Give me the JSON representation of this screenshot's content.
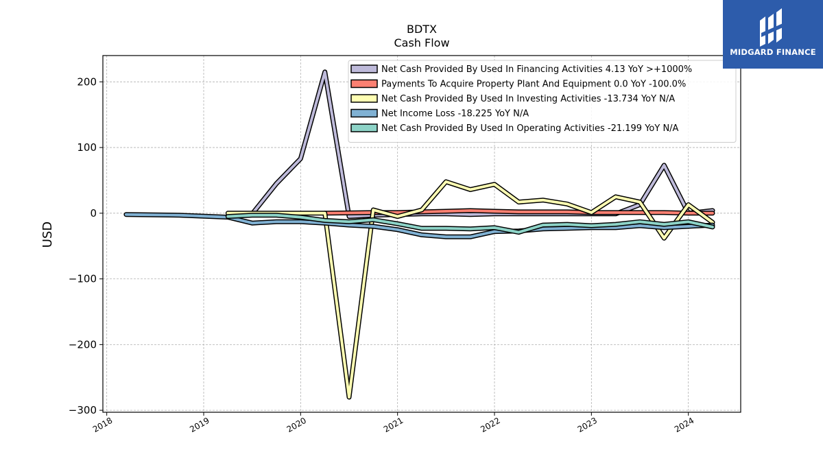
{
  "branding": {
    "logo_text": "MIDGARD FINANCE",
    "logo_color": "#2d5cab"
  },
  "chart_data": {
    "type": "line",
    "title": "BDTX",
    "subtitle": "Cash Flow",
    "xlabel": "",
    "ylabel": "USD",
    "xlim": [
      2017.96,
      2024.54
    ],
    "ylim": [
      -303,
      240
    ],
    "x_ticks": [
      2018,
      2019,
      2020,
      2021,
      2022,
      2023,
      2024
    ],
    "x_tick_labels": [
      "2018",
      "2019",
      "2020",
      "2021",
      "2022",
      "2023",
      "2024"
    ],
    "y_ticks": [
      200,
      100,
      0,
      -100,
      -200,
      -300
    ],
    "y_tick_labels": [
      "200",
      "100",
      "0",
      "−100",
      "−200",
      "−300"
    ],
    "grid": true,
    "legend_position": "top-right",
    "series": [
      {
        "name": "Net Cash Provided By Used In Financing Activities",
        "legend_label": "Net Cash Provided By Used In Financing Activities  4.13 YoY >+1000%",
        "color": "#bebada",
        "points": [
          [
            2019.5,
            -1
          ],
          [
            2019.75,
            45
          ],
          [
            2020.0,
            83
          ],
          [
            2020.25,
            215
          ],
          [
            2020.5,
            -5
          ],
          [
            2020.75,
            -3
          ],
          [
            2021.0,
            -2
          ],
          [
            2021.25,
            -1
          ],
          [
            2021.5,
            -1
          ],
          [
            2021.75,
            -2
          ],
          [
            2022.0,
            -1
          ],
          [
            2022.25,
            -1
          ],
          [
            2022.5,
            -1
          ],
          [
            2022.75,
            -1
          ],
          [
            2023.0,
            -1
          ],
          [
            2023.25,
            -1
          ],
          [
            2023.5,
            13
          ],
          [
            2023.75,
            73
          ],
          [
            2024.0,
            0
          ],
          [
            2024.25,
            4
          ]
        ]
      },
      {
        "name": "Payments To Acquire Property Plant And Equipment",
        "legend_label": "Payments To Acquire Property Plant And Equipment  0.0 YoY -100.0%",
        "color": "#fb8072",
        "points": [
          [
            2020.25,
            0
          ],
          [
            2020.5,
            0.5
          ],
          [
            2020.75,
            1
          ],
          [
            2021.0,
            1
          ],
          [
            2021.25,
            2
          ],
          [
            2021.5,
            3
          ],
          [
            2021.75,
            4
          ],
          [
            2022.0,
            3
          ],
          [
            2022.25,
            2
          ],
          [
            2022.5,
            2
          ],
          [
            2022.75,
            2
          ],
          [
            2023.0,
            1
          ],
          [
            2023.25,
            1
          ],
          [
            2023.5,
            1
          ],
          [
            2023.75,
            1
          ],
          [
            2024.0,
            0
          ],
          [
            2024.25,
            0
          ]
        ]
      },
      {
        "name": "Net Cash Provided By Used In Investing Activities",
        "legend_label": "Net Cash Provided By Used In Investing Activities  -13.734 YoY N/A",
        "color": "#ffffb3",
        "points": [
          [
            2019.25,
            0
          ],
          [
            2019.5,
            0
          ],
          [
            2019.75,
            0
          ],
          [
            2020.0,
            0
          ],
          [
            2020.25,
            0
          ],
          [
            2020.5,
            -280
          ],
          [
            2020.75,
            5
          ],
          [
            2021.0,
            -5
          ],
          [
            2021.25,
            5
          ],
          [
            2021.5,
            48
          ],
          [
            2021.75,
            36
          ],
          [
            2022.0,
            44
          ],
          [
            2022.25,
            17
          ],
          [
            2022.5,
            20
          ],
          [
            2022.75,
            14
          ],
          [
            2023.0,
            1
          ],
          [
            2023.25,
            25
          ],
          [
            2023.5,
            17
          ],
          [
            2023.75,
            -38
          ],
          [
            2024.0,
            13
          ],
          [
            2024.25,
            -14
          ]
        ]
      },
      {
        "name": "Net Income Loss",
        "legend_label": "Net Income Loss  -18.225 YoY N/A",
        "color": "#80b1d3",
        "points": [
          [
            2018.2,
            -2
          ],
          [
            2018.75,
            -3
          ],
          [
            2019.25,
            -6
          ],
          [
            2019.5,
            -15
          ],
          [
            2019.75,
            -13
          ],
          [
            2020.0,
            -13
          ],
          [
            2020.25,
            -15
          ],
          [
            2020.5,
            -18
          ],
          [
            2020.75,
            -20
          ],
          [
            2021.0,
            -25
          ],
          [
            2021.25,
            -33
          ],
          [
            2021.5,
            -36
          ],
          [
            2021.75,
            -36
          ],
          [
            2022.0,
            -28
          ],
          [
            2022.25,
            -27
          ],
          [
            2022.5,
            -24
          ],
          [
            2022.75,
            -23
          ],
          [
            2023.0,
            -22
          ],
          [
            2023.25,
            -22
          ],
          [
            2023.5,
            -19
          ],
          [
            2023.75,
            -22
          ],
          [
            2024.0,
            -20
          ],
          [
            2024.25,
            -18
          ]
        ]
      },
      {
        "name": "Net Cash Provided By Used In Operating Activities",
        "legend_label": "Net Cash Provided By Used In Operating Activities  -21.199 YoY N/A",
        "color": "#8dd3c7",
        "points": [
          [
            2019.25,
            -5
          ],
          [
            2019.5,
            -3
          ],
          [
            2019.75,
            -3
          ],
          [
            2020.0,
            -6
          ],
          [
            2020.25,
            -11
          ],
          [
            2020.5,
            -13
          ],
          [
            2020.75,
            -10
          ],
          [
            2021.0,
            -16
          ],
          [
            2021.25,
            -23
          ],
          [
            2021.5,
            -23
          ],
          [
            2021.75,
            -24
          ],
          [
            2022.0,
            -22
          ],
          [
            2022.25,
            -29
          ],
          [
            2022.5,
            -18
          ],
          [
            2022.75,
            -17
          ],
          [
            2023.0,
            -19
          ],
          [
            2023.25,
            -17
          ],
          [
            2023.5,
            -13
          ],
          [
            2023.75,
            -17
          ],
          [
            2024.0,
            -13
          ],
          [
            2024.25,
            -21
          ]
        ]
      }
    ]
  }
}
